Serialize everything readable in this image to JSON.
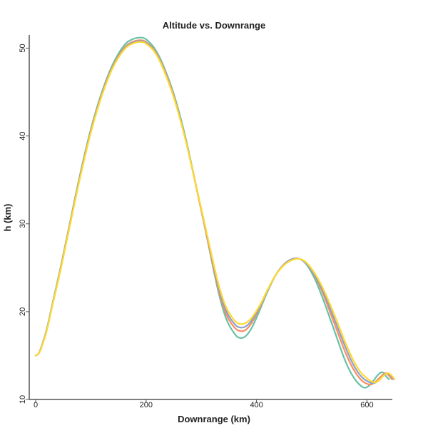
{
  "chart_data": {
    "type": "line",
    "title": "Altitude vs. Downrange",
    "xlabel": "Downrange (km)",
    "ylabel": "h (km)",
    "xlim": [
      0,
      655
    ],
    "ylim": [
      10,
      51.5
    ],
    "xticks": [
      0,
      200,
      400,
      600
    ],
    "yticks": [
      10,
      20,
      30,
      40,
      50
    ],
    "grid": false,
    "legend": "none",
    "series": [
      {
        "color": "#66c2a5",
        "x": [
          0,
          5,
          10,
          20,
          30,
          45,
          60,
          80,
          100,
          120,
          140,
          160,
          175,
          190,
          200,
          215,
          230,
          250,
          270,
          290,
          310,
          330,
          345,
          360,
          370,
          380,
          390,
          400,
          410,
          420,
          435,
          450,
          465,
          478,
          490,
          505,
          520,
          540,
          560,
          575,
          590,
          600,
          610,
          620,
          628,
          635,
          640
        ],
        "y": [
          15.0,
          15.2,
          15.9,
          18.0,
          20.8,
          25.0,
          29.5,
          35.5,
          40.8,
          45.0,
          48.2,
          50.3,
          51.0,
          51.2,
          51.0,
          50.0,
          48.2,
          44.8,
          40.2,
          34.5,
          28.5,
          22.5,
          19.2,
          17.5,
          17.0,
          17.2,
          18.0,
          19.3,
          20.8,
          22.3,
          24.2,
          25.4,
          26.0,
          26.0,
          25.4,
          23.8,
          21.5,
          18.0,
          14.5,
          12.6,
          11.5,
          11.4,
          12.0,
          12.8,
          13.1,
          12.6,
          12.3
        ]
      },
      {
        "color": "#fc8d62",
        "x": [
          0,
          5,
          10,
          20,
          30,
          45,
          60,
          80,
          100,
          120,
          140,
          160,
          175,
          190,
          200,
          215,
          230,
          250,
          270,
          290,
          310,
          330,
          345,
          360,
          370,
          380,
          390,
          400,
          410,
          420,
          435,
          450,
          465,
          478,
          490,
          505,
          520,
          540,
          560,
          575,
          590,
          605,
          615,
          625,
          633,
          640,
          645
        ],
        "y": [
          15.0,
          15.2,
          15.9,
          17.9,
          20.7,
          24.9,
          29.4,
          35.3,
          40.6,
          44.8,
          48.0,
          50.0,
          50.7,
          50.9,
          50.7,
          49.8,
          48.0,
          44.6,
          40.0,
          34.4,
          28.6,
          22.8,
          19.7,
          18.2,
          17.8,
          17.9,
          18.6,
          19.7,
          21.0,
          22.4,
          24.2,
          25.4,
          26.0,
          26.0,
          25.5,
          24.1,
          22.1,
          18.8,
          15.5,
          13.5,
          12.2,
          11.7,
          12.0,
          12.6,
          13.0,
          12.7,
          12.3
        ]
      },
      {
        "color": "#8da0cb",
        "x": [
          0,
          5,
          10,
          20,
          30,
          45,
          60,
          80,
          100,
          120,
          140,
          160,
          175,
          190,
          200,
          215,
          230,
          250,
          270,
          290,
          310,
          330,
          345,
          360,
          370,
          380,
          390,
          400,
          410,
          420,
          435,
          450,
          465,
          478,
          490,
          505,
          520,
          540,
          560,
          575,
          590,
          607,
          618,
          628,
          636,
          643,
          648
        ],
        "y": [
          15.0,
          15.2,
          15.9,
          17.9,
          20.7,
          24.8,
          29.3,
          35.2,
          40.5,
          44.7,
          47.9,
          49.9,
          50.6,
          50.8,
          50.6,
          49.7,
          47.9,
          44.5,
          40.0,
          34.5,
          28.8,
          23.1,
          20.1,
          18.6,
          18.2,
          18.3,
          18.9,
          19.9,
          21.1,
          22.4,
          24.2,
          25.4,
          26.0,
          26.0,
          25.5,
          24.2,
          22.4,
          19.3,
          16.1,
          14.0,
          12.6,
          11.9,
          12.0,
          12.6,
          13.0,
          12.7,
          12.3
        ]
      },
      {
        "color": "#ffd92f",
        "x": [
          0,
          5,
          10,
          20,
          30,
          45,
          60,
          80,
          100,
          120,
          140,
          160,
          175,
          190,
          200,
          215,
          230,
          250,
          270,
          290,
          310,
          330,
          345,
          360,
          370,
          380,
          390,
          400,
          410,
          420,
          435,
          450,
          465,
          478,
          490,
          505,
          520,
          540,
          560,
          575,
          590,
          610,
          620,
          630,
          638,
          645,
          650
        ],
        "y": [
          15.0,
          15.2,
          15.8,
          17.8,
          20.6,
          24.7,
          29.2,
          35.1,
          40.4,
          44.6,
          47.8,
          49.8,
          50.5,
          50.7,
          50.5,
          49.6,
          47.8,
          44.4,
          39.9,
          34.5,
          28.9,
          23.4,
          20.5,
          19.0,
          18.6,
          18.7,
          19.2,
          20.1,
          21.2,
          22.5,
          24.2,
          25.3,
          25.9,
          26.0,
          25.6,
          24.4,
          22.7,
          19.8,
          16.6,
          14.5,
          13.0,
          12.0,
          12.1,
          12.7,
          13.0,
          12.7,
          12.3
        ]
      }
    ]
  }
}
